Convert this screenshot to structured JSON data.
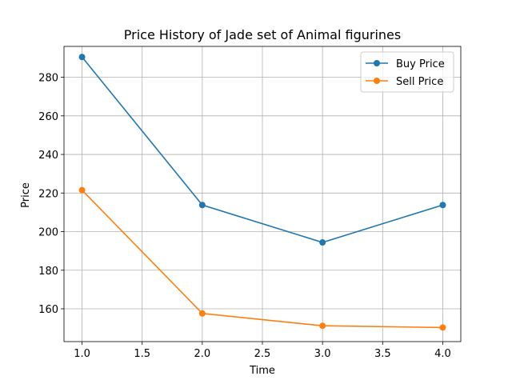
{
  "chart_data": {
    "type": "line",
    "title": "Price History of Jade set of Animal figurines",
    "xlabel": "Time",
    "ylabel": "Price",
    "x": [
      1.0,
      2.0,
      3.0,
      4.0
    ],
    "xlim": [
      0.85,
      4.15
    ],
    "ylim": [
      143,
      296
    ],
    "xticks": [
      "1.0",
      "1.5",
      "2.0",
      "2.5",
      "3.0",
      "3.5",
      "4.0"
    ],
    "yticks": [
      "160",
      "180",
      "200",
      "220",
      "240",
      "260",
      "280"
    ],
    "grid": true,
    "legend_position": "top-right",
    "series": [
      {
        "name": "Buy Price",
        "color": "#1f77b4",
        "values": [
          290.5,
          213.8,
          194.4,
          213.8
        ]
      },
      {
        "name": "Sell Price",
        "color": "#ff7f0e",
        "values": [
          221.5,
          157.6,
          151.2,
          150.3
        ]
      }
    ]
  }
}
